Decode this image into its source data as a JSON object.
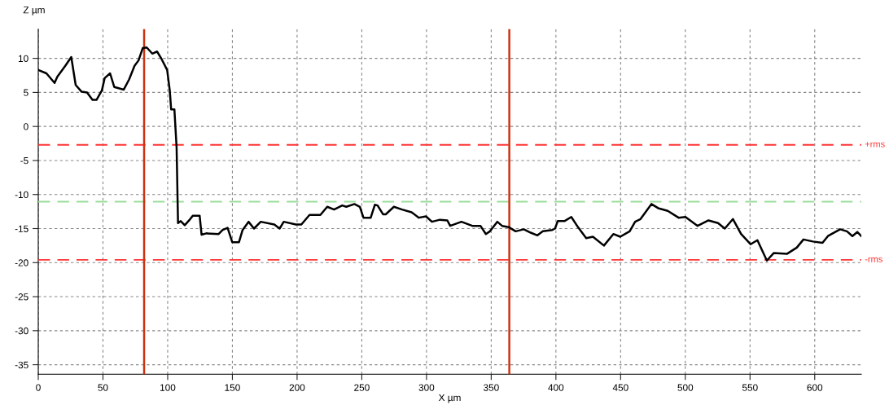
{
  "chart_data": {
    "type": "line",
    "xlabel": "X µm",
    "ylabel": "Z µm",
    "xlim": [
      0,
      636
    ],
    "ylim": [
      -36.4,
      14.3
    ],
    "xticks": [
      0,
      50,
      100,
      150,
      200,
      250,
      300,
      350,
      400,
      450,
      500,
      550,
      600
    ],
    "yticks": [
      10,
      5,
      0,
      -5,
      -10,
      -15,
      -20,
      -25,
      -30,
      -35
    ],
    "grid": true,
    "marker": "none",
    "line_style": "solid",
    "series": [
      {
        "color": "#000000",
        "x": [
          0,
          6.3,
          12.6,
          14.7,
          20.9,
          25.5,
          28.9,
          33.5,
          37.7,
          41.9,
          45.0,
          49.2,
          51.3,
          55.5,
          58.7,
          66.0,
          70.2,
          74.4,
          77.5,
          80.7,
          83.8,
          88.1,
          91.8,
          95.3,
          99.6,
          101.6,
          102.7,
          105.2,
          106.9,
          108,
          110.1,
          113.2,
          117.4,
          119.5,
          124.7,
          126.2,
          129.9,
          139.4,
          142.5,
          146.3,
          149.9,
          155.1,
          157.9,
          162.5,
          166.7,
          171.9,
          182.4,
          186.5,
          189.7,
          199.1,
          203.3,
          209.6,
          218.0,
          223.3,
          228.6,
          234.9,
          238.0,
          244.3,
          248.5,
          251.3,
          256.9,
          260.1,
          262.2,
          266.4,
          268.5,
          274.8,
          281.1,
          288.5,
          294.1,
          299.6,
          304.2,
          310.3,
          316.1,
          318.3,
          327.0,
          335.4,
          341.7,
          345.9,
          349.0,
          354.7,
          358.4,
          363.7,
          368.9,
          375.2,
          380.5,
          385.7,
          389.9,
          397.2,
          399.3,
          401.4,
          406.6,
          411.9,
          417.1,
          423.4,
          428.6,
          437.1,
          444.4,
          449.7,
          457.0,
          461.2,
          465.4,
          473.8,
          479.0,
          486.4,
          494.8,
          500.1,
          509.5,
          517.9,
          525.3,
          530.5,
          536.8,
          543.1,
          550.4,
          555.7,
          563.0,
          568.3,
          578.7,
          586.1,
          591.3,
          598.6,
          606.0,
          610.2,
          619.6,
          624.9,
          629.1,
          632.9,
          636
        ],
        "values": [
          8.3,
          7.8,
          6.4,
          7.3,
          8.9,
          10.2,
          6.1,
          5.1,
          5.0,
          3.9,
          3.9,
          5.3,
          7.1,
          7.8,
          5.8,
          5.4,
          6.9,
          8.9,
          9.7,
          11.5,
          11.6,
          10.7,
          11.0,
          9.9,
          8.3,
          5.3,
          2.5,
          2.5,
          -3.1,
          -14.2,
          -13.9,
          -14.5,
          -13.6,
          -13.1,
          -13.1,
          -15.9,
          -15.7,
          -15.8,
          -15.2,
          -14.9,
          -17.0,
          -17.0,
          -15.2,
          -14.0,
          -15.0,
          -14.0,
          -14.4,
          -15.0,
          -14.0,
          -14.4,
          -14.4,
          -13.0,
          -13.0,
          -11.8,
          -12.2,
          -11.6,
          -11.8,
          -11.4,
          -11.8,
          -13.4,
          -13.4,
          -11.5,
          -11.6,
          -12.9,
          -12.9,
          -11.8,
          -12.2,
          -12.6,
          -13.4,
          -13.2,
          -14.0,
          -13.7,
          -13.8,
          -14.6,
          -14.0,
          -14.6,
          -14.6,
          -15.8,
          -15.4,
          -14.0,
          -14.6,
          -14.8,
          -15.4,
          -15.1,
          -15.6,
          -16.0,
          -15.4,
          -15.2,
          -15.0,
          -13.9,
          -13.9,
          -13.3,
          -14.8,
          -16.4,
          -16.2,
          -17.5,
          -15.8,
          -16.2,
          -15.4,
          -14.0,
          -13.6,
          -11.4,
          -12.0,
          -12.4,
          -13.4,
          -13.3,
          -14.6,
          -13.8,
          -14.2,
          -15.0,
          -13.6,
          -15.8,
          -17.3,
          -16.7,
          -19.7,
          -18.6,
          -18.7,
          -17.8,
          -16.6,
          -16.9,
          -17.1,
          -16.1,
          -15.1,
          -15.4,
          -16.1,
          -15.5,
          -16.1
        ]
      }
    ],
    "ref_lines": [
      {
        "axis": "y",
        "value": -2.7,
        "label": "+rms",
        "color": "#ff3333",
        "line_style": "dashed"
      },
      {
        "axis": "y",
        "value": -11.05,
        "color": "#99dd99",
        "line_style": "dashed"
      },
      {
        "axis": "y",
        "value": -19.6,
        "label": "-rms",
        "color": "#ff3333",
        "line_style": "dashed"
      },
      {
        "axis": "x",
        "value": 81.8,
        "color": "#cc3311",
        "line_style": "solid"
      },
      {
        "axis": "x",
        "value": 364,
        "color": "#cc3311",
        "line_style": "solid"
      }
    ]
  }
}
